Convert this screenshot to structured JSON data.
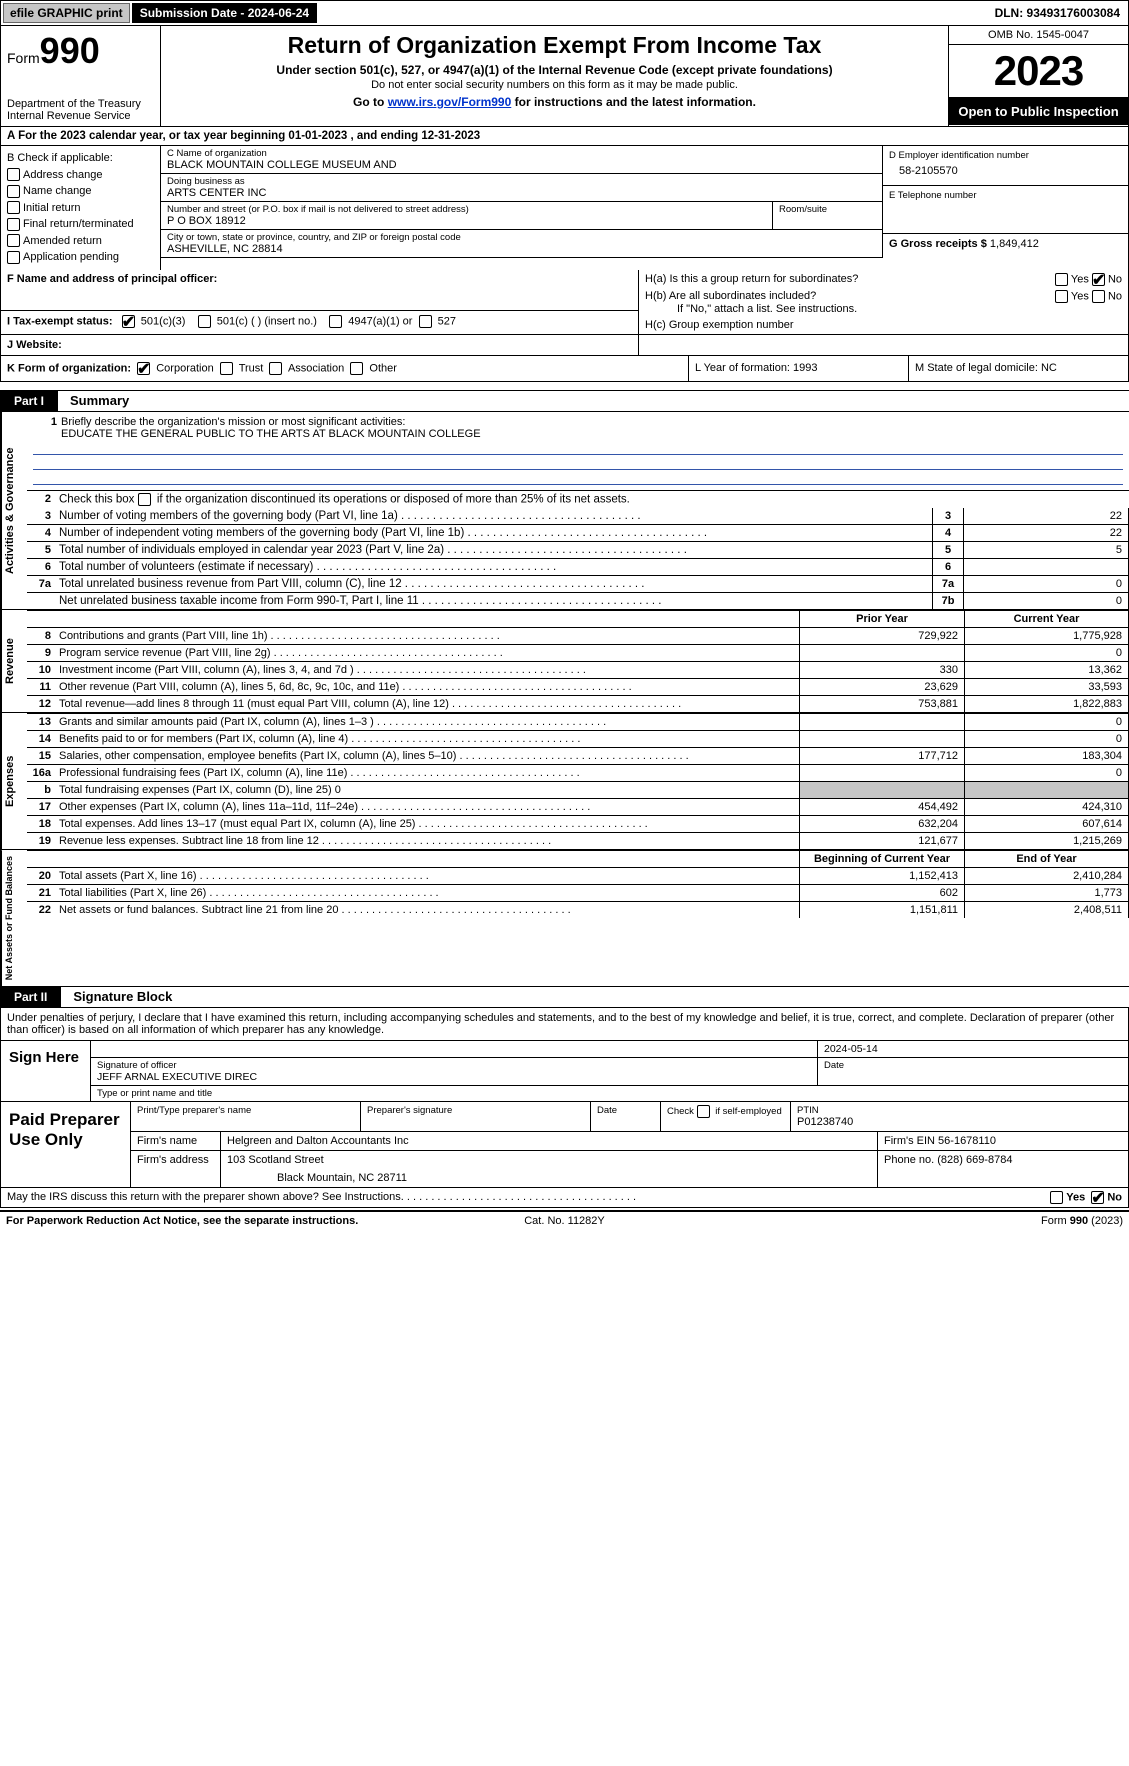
{
  "topbar": {
    "efile": "efile GRAPHIC print",
    "sub_label": "Submission Date - 2024-06-24",
    "dln_label": "DLN: 93493176003084"
  },
  "header": {
    "form_prefix": "Form",
    "form_num": "990",
    "dept": "Department of the Treasury",
    "irs": "Internal Revenue Service",
    "title": "Return of Organization Exempt From Income Tax",
    "sub1": "Under section 501(c), 527, or 4947(a)(1) of the Internal Revenue Code (except private foundations)",
    "sub2": "Do not enter social security numbers on this form as it may be made public.",
    "sub3_pre": "Go to ",
    "sub3_link": "www.irs.gov/Form990",
    "sub3_post": " for instructions and the latest information.",
    "omb": "OMB No. 1545-0047",
    "year": "2023",
    "open": "Open to Public Inspection"
  },
  "calendar": "A  For the 2023 calendar year, or tax year beginning 01-01-2023   , and ending 12-31-2023",
  "boxB": {
    "title": "B Check if applicable:",
    "opts": [
      "Address change",
      "Name change",
      "Initial return",
      "Final return/terminated",
      "Amended return",
      "Application pending"
    ]
  },
  "boxC": {
    "name_lbl": "C Name of organization",
    "name": "BLACK MOUNTAIN COLLEGE MUSEUM AND",
    "dba_lbl": "Doing business as",
    "dba": "ARTS CENTER INC",
    "addr_lbl": "Number and street (or P.O. box if mail is not delivered to street address)",
    "addr": "P O BOX 18912",
    "room_lbl": "Room/suite",
    "city_lbl": "City or town, state or province, country, and ZIP or foreign postal code",
    "city": "ASHEVILLE, NC  28814"
  },
  "boxD": {
    "lbl": "D Employer identification number",
    "val": "58-2105570"
  },
  "boxE": {
    "lbl": "E Telephone number"
  },
  "boxG": {
    "lbl": "G Gross receipts $",
    "val": "1,849,412"
  },
  "boxF": {
    "lbl": "F  Name and address of principal officer:"
  },
  "boxH": {
    "a": "H(a)  Is this a group return for subordinates?",
    "b": "H(b)  Are all subordinates included?",
    "b2": "If \"No,\" attach a list. See instructions.",
    "c": "H(c)  Group exemption number"
  },
  "boxI": {
    "lbl": "I  Tax-exempt status:",
    "opts": [
      "501(c)(3)",
      "501(c) (  ) (insert no.)",
      "4947(a)(1) or",
      "527"
    ]
  },
  "boxJ": "J  Website:",
  "boxK": {
    "lbl": "K Form of organization:",
    "opts": [
      "Corporation",
      "Trust",
      "Association",
      "Other"
    ]
  },
  "boxL": "L Year of formation: 1993",
  "boxM": "M State of legal domicile: NC",
  "part1": {
    "tag": "Part I",
    "title": "Summary"
  },
  "sec_ag": {
    "vtab": "Activities & Governance",
    "l1": "Briefly describe the organization's mission or most significant activities:",
    "l1val": "EDUCATE THE GENERAL PUBLIC TO THE ARTS AT BLACK MOUNTAIN COLLEGE",
    "l2": "Check this box        if the organization discontinued its operations or disposed of more than 25% of its net assets.",
    "rows": [
      {
        "n": "3",
        "d": "Number of voting members of the governing body (Part VI, line 1a)",
        "v": "22"
      },
      {
        "n": "4",
        "d": "Number of independent voting members of the governing body (Part VI, line 1b)",
        "v": "22"
      },
      {
        "n": "5",
        "d": "Total number of individuals employed in calendar year 2023 (Part V, line 2a)",
        "v": "5"
      },
      {
        "n": "6",
        "d": "Total number of volunteers (estimate if necessary)",
        "v": ""
      },
      {
        "n": "7a",
        "d": "Total unrelated business revenue from Part VIII, column (C), line 12",
        "v": "0"
      },
      {
        "n": "7b",
        "d": "Net unrelated business taxable income from Form 990-T, Part I, line 11",
        "nolabel": true,
        "v": "0"
      }
    ]
  },
  "sec_rev": {
    "vtab": "Revenue",
    "py": "Prior Year",
    "cy": "Current Year",
    "rows": [
      {
        "n": "8",
        "d": "Contributions and grants (Part VIII, line 1h)",
        "py": "729,922",
        "cy": "1,775,928"
      },
      {
        "n": "9",
        "d": "Program service revenue (Part VIII, line 2g)",
        "py": "",
        "cy": "0"
      },
      {
        "n": "10",
        "d": "Investment income (Part VIII, column (A), lines 3, 4, and 7d )",
        "py": "330",
        "cy": "13,362"
      },
      {
        "n": "11",
        "d": "Other revenue (Part VIII, column (A), lines 5, 6d, 8c, 9c, 10c, and 11e)",
        "py": "23,629",
        "cy": "33,593"
      },
      {
        "n": "12",
        "d": "Total revenue—add lines 8 through 11 (must equal Part VIII, column (A), line 12)",
        "py": "753,881",
        "cy": "1,822,883"
      }
    ]
  },
  "sec_exp": {
    "vtab": "Expenses",
    "rows": [
      {
        "n": "13",
        "d": "Grants and similar amounts paid (Part IX, column (A), lines 1–3 )",
        "py": "",
        "cy": "0"
      },
      {
        "n": "14",
        "d": "Benefits paid to or for members (Part IX, column (A), line 4)",
        "py": "",
        "cy": "0"
      },
      {
        "n": "15",
        "d": "Salaries, other compensation, employee benefits (Part IX, column (A), lines 5–10)",
        "py": "177,712",
        "cy": "183,304"
      },
      {
        "n": "16a",
        "d": "Professional fundraising fees (Part IX, column (A), line 11e)",
        "py": "",
        "cy": "0"
      },
      {
        "n": "b",
        "d": "Total fundraising expenses (Part IX, column (D), line 25) 0",
        "shade": true
      },
      {
        "n": "17",
        "d": "Other expenses (Part IX, column (A), lines 11a–11d, 11f–24e)",
        "py": "454,492",
        "cy": "424,310"
      },
      {
        "n": "18",
        "d": "Total expenses. Add lines 13–17 (must equal Part IX, column (A), line 25)",
        "py": "632,204",
        "cy": "607,614"
      },
      {
        "n": "19",
        "d": "Revenue less expenses. Subtract line 18 from line 12",
        "py": "121,677",
        "cy": "1,215,269"
      }
    ]
  },
  "sec_net": {
    "vtab": "Net Assets or Fund Balances",
    "py": "Beginning of Current Year",
    "cy": "End of Year",
    "rows": [
      {
        "n": "20",
        "d": "Total assets (Part X, line 16)",
        "py": "1,152,413",
        "cy": "2,410,284"
      },
      {
        "n": "21",
        "d": "Total liabilities (Part X, line 26)",
        "py": "602",
        "cy": "1,773"
      },
      {
        "n": "22",
        "d": "Net assets or fund balances. Subtract line 21 from line 20",
        "py": "1,151,811",
        "cy": "2,408,511"
      }
    ]
  },
  "part2": {
    "tag": "Part II",
    "title": "Signature Block"
  },
  "sig": {
    "text": "Under penalties of perjury, I declare that I have examined this return, including accompanying schedules and statements, and to the best of my knowledge and belief, it is true, correct, and complete. Declaration of preparer (other than officer) is based on all information of which preparer has any knowledge.",
    "sign_here": "Sign Here",
    "date": "2024-05-14",
    "sig_lbl": "Signature of officer",
    "name": "JEFF ARNAL EXECUTIVE DIREC",
    "name_lbl": "Type or print name and title",
    "date_lbl": "Date"
  },
  "prep": {
    "lbl": "Paid Preparer Use Only",
    "h1": "Print/Type preparer's name",
    "h2": "Preparer's signature",
    "h3": "Date",
    "h4_pre": "Check ",
    "h4_post": " if self-employed",
    "ptin_lbl": "PTIN",
    "ptin": "P01238740",
    "firm_lbl": "Firm's name",
    "firm": "Helgreen and Dalton Accountants Inc",
    "ein_lbl": "Firm's EIN",
    "ein": "56-1678110",
    "addr_lbl": "Firm's address",
    "addr1": "103 Scotland Street",
    "addr2": "Black Mountain, NC  28711",
    "phone_lbl": "Phone no.",
    "phone": "(828) 669-8784"
  },
  "discuss": "May the IRS discuss this return with the preparer shown above? See Instructions.",
  "footer": {
    "l": "For Paperwork Reduction Act Notice, see the separate instructions.",
    "c": "Cat. No. 11282Y",
    "r_pre": "Form ",
    "r_b": "990",
    "r_post": " (2023)"
  },
  "yesno": {
    "yes": "Yes",
    "no": "No"
  }
}
